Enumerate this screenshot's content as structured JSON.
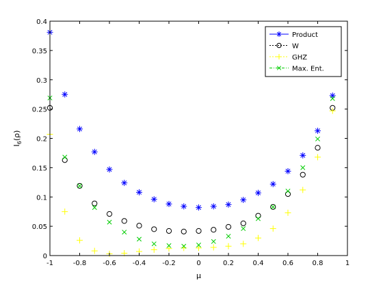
{
  "chart_data": {
    "type": "scatter",
    "xlabel": "μ",
    "ylabel": "I",
    "ylabel_sub": "6",
    "ylabel_arg": "(ρ)",
    "xlim": [
      -1,
      1
    ],
    "ylim": [
      0,
      0.4
    ],
    "x_ticks": [
      -1,
      -0.8,
      -0.6,
      -0.4,
      -0.2,
      0,
      0.2,
      0.4,
      0.6,
      0.8,
      1
    ],
    "x_tick_labels": [
      "-1",
      "-0.8",
      "-0.6",
      "-0.4",
      "-0.2",
      "0",
      "0.2",
      "0.4",
      "0.6",
      "0.8",
      "1"
    ],
    "y_ticks": [
      0,
      0.05,
      0.1,
      0.15,
      0.2,
      0.25,
      0.3,
      0.35,
      0.4
    ],
    "y_tick_labels": [
      "0",
      "0.05",
      "0.1",
      "0.15",
      "0.2",
      "0.25",
      "0.3",
      "0.35",
      "0.4"
    ],
    "grid": false,
    "legend_position": "top-right",
    "x": [
      -1,
      -0.9,
      -0.8,
      -0.7,
      -0.6,
      -0.5,
      -0.4,
      -0.3,
      -0.2,
      -0.1,
      0,
      0.1,
      0.2,
      0.3,
      0.4,
      0.5,
      0.6,
      0.7,
      0.8,
      0.9
    ],
    "series": [
      {
        "name": "Product",
        "color": "#0000ff",
        "marker": "asterisk",
        "values": [
          0.381,
          0.275,
          0.216,
          0.177,
          0.147,
          0.124,
          0.108,
          0.096,
          0.088,
          0.084,
          0.082,
          0.084,
          0.087,
          0.095,
          0.107,
          0.122,
          0.144,
          0.171,
          0.213,
          0.273
        ]
      },
      {
        "name": "W",
        "color": "#000000",
        "marker": "circle",
        "values": [
          0.252,
          0.163,
          0.119,
          0.089,
          0.071,
          0.059,
          0.051,
          0.045,
          0.042,
          0.041,
          0.042,
          0.044,
          0.049,
          0.055,
          0.068,
          0.083,
          0.105,
          0.138,
          0.184,
          0.252
        ]
      },
      {
        "name": "GHZ",
        "color": "#ffff00",
        "marker": "plus",
        "values": [
          0.207,
          0.075,
          0.026,
          0.008,
          0.003,
          0.004,
          0.007,
          0.01,
          0.012,
          0.013,
          0.013,
          0.014,
          0.016,
          0.02,
          0.03,
          0.046,
          0.073,
          0.112,
          0.168,
          0.247
        ]
      },
      {
        "name": "Max. Ent.",
        "color": "#00cc00",
        "marker": "x",
        "values": [
          0.269,
          0.168,
          0.119,
          0.082,
          0.057,
          0.04,
          0.028,
          0.02,
          0.017,
          0.016,
          0.018,
          0.024,
          0.033,
          0.046,
          0.063,
          0.083,
          0.11,
          0.15,
          0.199,
          0.268
        ]
      }
    ]
  }
}
